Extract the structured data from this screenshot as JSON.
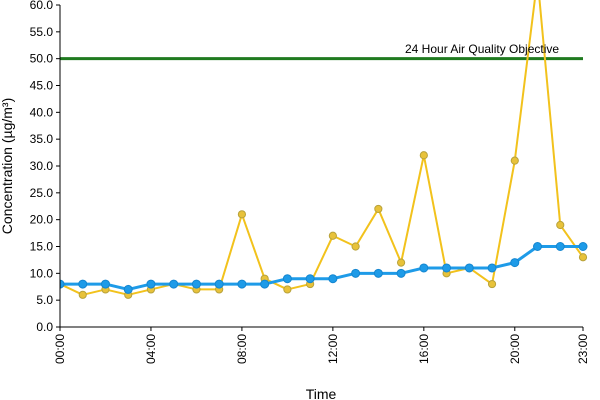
{
  "chart_data": {
    "type": "line",
    "xlabel": "Time",
    "ylabel": "Concentration (µg/m³)",
    "ylim": [
      0,
      60
    ],
    "xlim": [
      0,
      23
    ],
    "y_ticks": [
      "0.0",
      "5.0",
      "10.0",
      "15.0",
      "20.0",
      "25.0",
      "30.0",
      "35.0",
      "40.0",
      "45.0",
      "50.0",
      "55.0",
      "60.0"
    ],
    "x_ticks": [
      "00:00",
      "04:00",
      "08:00",
      "12:00",
      "16:00",
      "20:00",
      "23:00"
    ],
    "x_tick_hours": [
      0,
      4,
      8,
      12,
      16,
      20,
      23
    ],
    "grid": false,
    "x": [
      0,
      1,
      2,
      3,
      4,
      5,
      6,
      7,
      8,
      9,
      10,
      11,
      12,
      13,
      14,
      15,
      16,
      17,
      18,
      19,
      20,
      21,
      22,
      23
    ],
    "series": [
      {
        "color": "#f2c21c",
        "marker": "#e8c23a",
        "values": [
          8,
          6,
          7,
          6,
          7,
          8,
          7,
          7,
          21,
          9,
          7,
          8,
          17,
          15,
          22,
          12,
          32,
          10,
          11,
          8,
          31,
          65,
          19,
          13
        ]
      },
      {
        "color": "#1e9be8",
        "marker": "#1e9be8",
        "values": [
          8,
          8,
          8,
          7,
          8,
          8,
          8,
          8,
          8,
          8,
          9,
          9,
          9,
          10,
          10,
          10,
          11,
          11,
          11,
          11,
          12,
          15,
          15,
          15
        ]
      }
    ],
    "reference_line": {
      "value": 50,
      "label": "24 Hour Air Quality Objective",
      "color": "#1f7a1f"
    }
  }
}
